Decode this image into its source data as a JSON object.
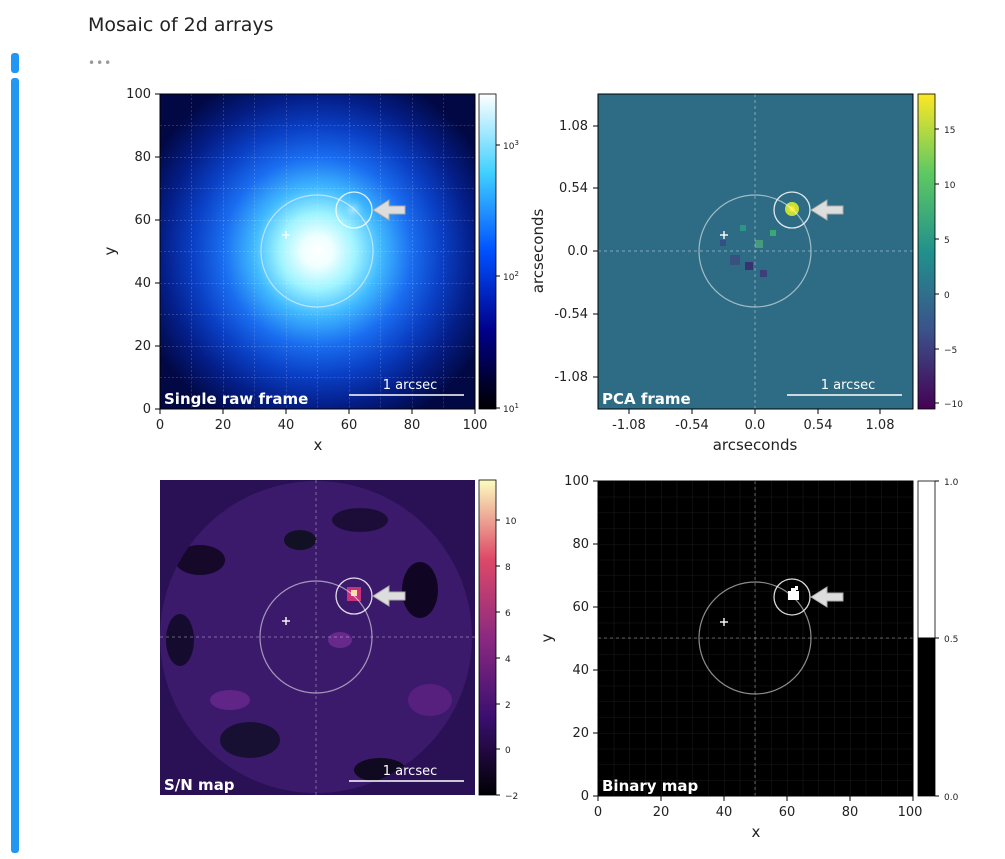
{
  "cell": {
    "title": "Mosaic of 2d arrays",
    "collapsed_indicator": "•••"
  },
  "colors": {
    "accent": "#2196f3"
  },
  "panels": [
    {
      "label": "Single raw frame",
      "xlabel": "x",
      "ylabel": "y",
      "xticks": [
        "0",
        "20",
        "40",
        "60",
        "80",
        "100"
      ],
      "yticks": [
        "0",
        "20",
        "40",
        "60",
        "80",
        "100"
      ],
      "scalebar": "1 arcsec",
      "colorbar_ticks": [
        "10",
        "10",
        "10"
      ],
      "colorbar_exps": [
        "3",
        "2",
        "1"
      ],
      "colormap": "blue log"
    },
    {
      "label": "PCA frame",
      "xlabel": "arcseconds",
      "ylabel": "arcseconds",
      "xticks": [
        "-1.08",
        "-0.54",
        "0.0",
        "0.54",
        "1.08"
      ],
      "yticks": [
        "1.08",
        "0.54",
        "0.0",
        "-0.54",
        "-1.08"
      ],
      "scalebar": "1 arcsec",
      "colorbar_ticks": [
        "15",
        "10",
        "5",
        "0",
        "−5",
        "−10"
      ],
      "colormap": "viridis"
    },
    {
      "label": "S/N map",
      "xlabel": "",
      "ylabel": "",
      "scalebar": "1 arcsec",
      "colorbar_ticks": [
        "10",
        "8",
        "6",
        "4",
        "2",
        "0",
        "−2"
      ],
      "colormap": "magma"
    },
    {
      "label": "Binary map",
      "xlabel": "x",
      "ylabel": "y",
      "xticks": [
        "0",
        "20",
        "40",
        "60",
        "80",
        "100"
      ],
      "yticks": [
        "0",
        "20",
        "40",
        "60",
        "80",
        "100"
      ],
      "colorbar_ticks": [
        "1.0",
        "0.5",
        "0.0"
      ],
      "colormap": "gray"
    }
  ]
}
